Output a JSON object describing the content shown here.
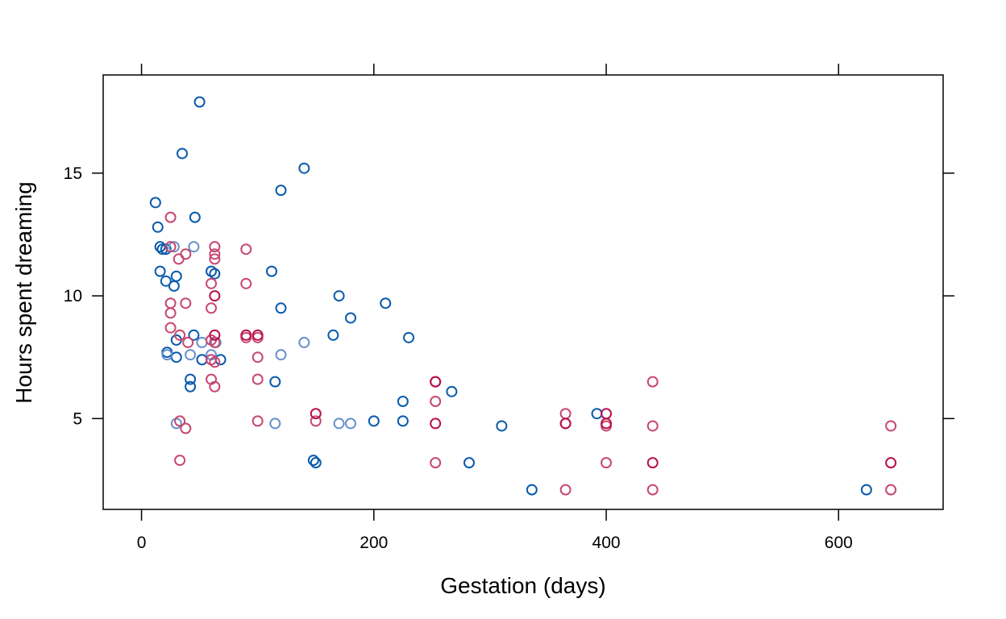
{
  "chart_data": {
    "type": "scatter",
    "title": "",
    "xlabel": "Gestation (days)",
    "ylabel": "Hours spent dreaming",
    "xlim": [
      -33,
      690
    ],
    "ylim": [
      1.3,
      19.0
    ],
    "x_ticks": [
      0,
      200,
      400,
      600
    ],
    "y_ticks": [
      5,
      10,
      15
    ],
    "x_tick_labels": [
      "0",
      "200",
      "400",
      "600"
    ],
    "y_tick_labels": [
      "5",
      "10",
      "15"
    ],
    "grid": false,
    "legend": "none",
    "series": [
      {
        "color": "#0a5aad",
        "points": [
          [
            50,
            17.9
          ],
          [
            35,
            15.8
          ],
          [
            140,
            15.2
          ],
          [
            120,
            14.3
          ],
          [
            12,
            13.8
          ],
          [
            46,
            13.2
          ],
          [
            14,
            12.8
          ],
          [
            16,
            12.0
          ],
          [
            18,
            11.9
          ],
          [
            21,
            11.9
          ],
          [
            16,
            11.0
          ],
          [
            60,
            11.0
          ],
          [
            63,
            10.9
          ],
          [
            30,
            10.8
          ],
          [
            112,
            11.0
          ],
          [
            21,
            10.6
          ],
          [
            28,
            10.4
          ],
          [
            170,
            10.0
          ],
          [
            210,
            9.7
          ],
          [
            120,
            9.5
          ],
          [
            180,
            9.1
          ],
          [
            230,
            8.3
          ],
          [
            45,
            8.4
          ],
          [
            165,
            8.4
          ],
          [
            30,
            8.2
          ],
          [
            22,
            7.7
          ],
          [
            30,
            7.5
          ],
          [
            52,
            7.4
          ],
          [
            68,
            7.4
          ],
          [
            42,
            6.6
          ],
          [
            42,
            6.3
          ],
          [
            115,
            6.5
          ],
          [
            267,
            6.1
          ],
          [
            225,
            5.7
          ],
          [
            392,
            5.2
          ],
          [
            200,
            4.9
          ],
          [
            225,
            4.9
          ],
          [
            310,
            4.7
          ],
          [
            148,
            3.3
          ],
          [
            150,
            3.2
          ],
          [
            282,
            3.2
          ],
          [
            336,
            2.1
          ],
          [
            624,
            2.1
          ]
        ]
      },
      {
        "color": "#6890cc",
        "points": [
          [
            28,
            12.0
          ],
          [
            45,
            12.0
          ],
          [
            22,
            7.6
          ],
          [
            42,
            7.6
          ],
          [
            60,
            7.6
          ],
          [
            120,
            7.6
          ],
          [
            64,
            8.1
          ],
          [
            52,
            8.1
          ],
          [
            140,
            8.1
          ],
          [
            30,
            4.8
          ],
          [
            115,
            4.8
          ],
          [
            170,
            4.8
          ],
          [
            180,
            4.8
          ]
        ]
      },
      {
        "color": "#c84870",
        "points": [
          [
            25,
            13.2
          ],
          [
            25,
            12.0
          ],
          [
            63,
            12.0
          ],
          [
            90,
            11.9
          ],
          [
            38,
            11.7
          ],
          [
            63,
            11.7
          ],
          [
            32,
            11.5
          ],
          [
            63,
            11.5
          ],
          [
            60,
            10.5
          ],
          [
            90,
            10.5
          ],
          [
            38,
            9.7
          ],
          [
            25,
            9.7
          ],
          [
            60,
            9.5
          ],
          [
            25,
            9.3
          ],
          [
            25,
            8.7
          ],
          [
            33,
            8.4
          ],
          [
            40,
            8.1
          ],
          [
            63,
            8.1
          ],
          [
            60,
            8.2
          ],
          [
            90,
            8.3
          ],
          [
            100,
            8.3
          ],
          [
            100,
            7.5
          ],
          [
            60,
            7.4
          ],
          [
            63,
            7.3
          ],
          [
            60,
            6.6
          ],
          [
            100,
            6.6
          ],
          [
            63,
            6.3
          ],
          [
            253,
            6.5
          ],
          [
            440,
            6.5
          ],
          [
            253,
            5.7
          ],
          [
            365,
            5.2
          ],
          [
            365,
            4.8
          ],
          [
            400,
            4.7
          ],
          [
            440,
            4.7
          ],
          [
            645,
            4.7
          ],
          [
            100,
            4.9
          ],
          [
            150,
            4.9
          ],
          [
            33,
            4.9
          ],
          [
            38,
            4.6
          ],
          [
            33,
            3.3
          ],
          [
            253,
            3.2
          ],
          [
            400,
            3.2
          ],
          [
            365,
            2.1
          ],
          [
            440,
            2.1
          ],
          [
            645,
            2.1
          ]
        ]
      },
      {
        "color": "#b8104e",
        "points": [
          [
            63,
            10.0
          ],
          [
            90,
            8.4
          ],
          [
            100,
            8.4
          ],
          [
            63,
            8.4
          ],
          [
            150,
            5.2
          ],
          [
            400,
            5.2
          ],
          [
            253,
            6.5
          ],
          [
            253,
            4.8
          ],
          [
            365,
            4.8
          ],
          [
            400,
            4.8
          ],
          [
            440,
            3.2
          ],
          [
            645,
            3.2
          ]
        ]
      }
    ]
  }
}
